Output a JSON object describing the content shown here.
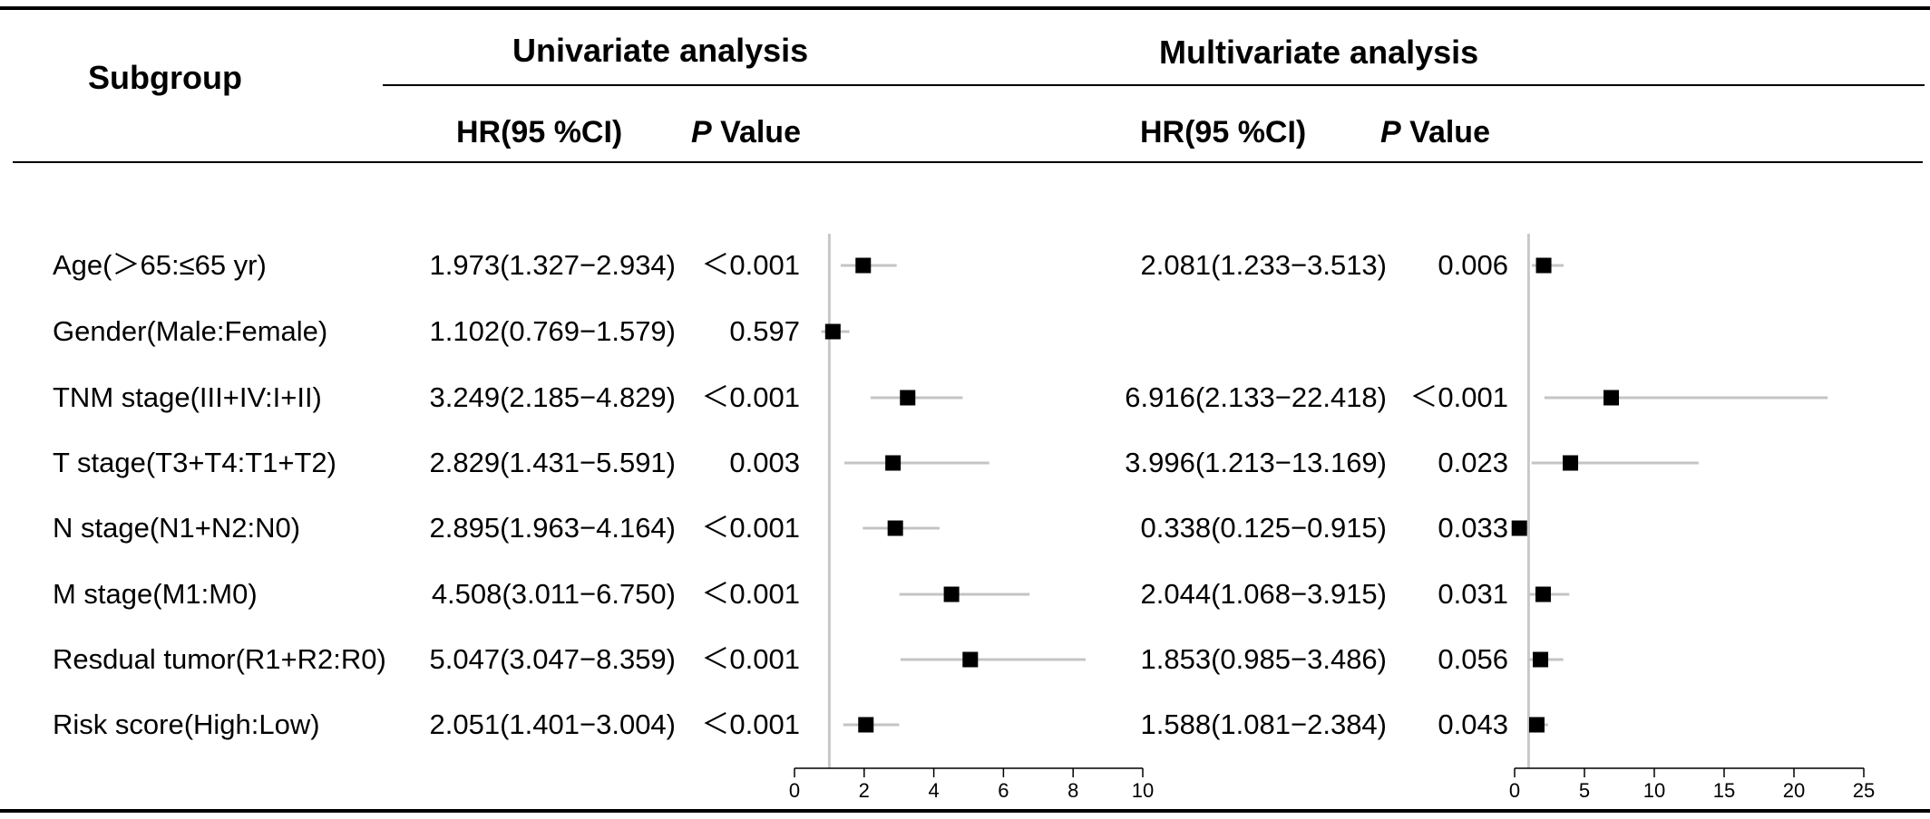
{
  "header": {
    "subgroup": "Subgroup",
    "univariate": "Univariate analysis",
    "multivariate": "Multivariate analysis",
    "hr_label": "HR(95 %CI)",
    "p_italic": "P",
    "p_value_word": "Value"
  },
  "rows": [
    {
      "label": "Age(＞65:≤65 yr)",
      "uni_hr": "1.973(1.327−2.934)",
      "uni_p": "＜0.001",
      "multi_hr": "2.081(1.233−3.513)",
      "multi_p": "0.006"
    },
    {
      "label": "Gender(Male:Female)",
      "uni_hr": "1.102(0.769−1.579)",
      "uni_p": "0.597",
      "multi_hr": "",
      "multi_p": ""
    },
    {
      "label": "TNM stage(III+IV:I+II)",
      "uni_hr": "3.249(2.185−4.829)",
      "uni_p": "＜0.001",
      "multi_hr": "6.916(2.133−22.418)",
      "multi_p": "＜0.001"
    },
    {
      "label": "T stage(T3+T4:T1+T2)",
      "uni_hr": "2.829(1.431−5.591)",
      "uni_p": "0.003",
      "multi_hr": "3.996(1.213−13.169)",
      "multi_p": "0.023"
    },
    {
      "label": "N stage(N1+N2:N0)",
      "uni_hr": "2.895(1.963−4.164)",
      "uni_p": "＜0.001",
      "multi_hr": "0.338(0.125−0.915)",
      "multi_p": "0.033"
    },
    {
      "label": "M stage(M1:M0)",
      "uni_hr": "4.508(3.011−6.750)",
      "uni_p": "＜0.001",
      "multi_hr": "2.044(1.068−3.915)",
      "multi_p": "0.031"
    },
    {
      "label": "Resdual tumor(R1+R2:R0)",
      "uni_hr": "5.047(3.047−8.359)",
      "uni_p": "＜0.001",
      "multi_hr": "1.853(0.985−3.486)",
      "multi_p": "0.056"
    },
    {
      "label": "Risk score(High:Low)",
      "uni_hr": "2.051(1.401−3.004)",
      "uni_p": "＜0.001",
      "multi_hr": "1.588(1.081−2.384)",
      "multi_p": "0.043"
    }
  ],
  "chart_data": [
    {
      "type": "forest",
      "title": "Univariate analysis",
      "xlim": [
        0,
        10
      ],
      "ticks": [
        0,
        2,
        4,
        6,
        8,
        10
      ],
      "reference_line": 1,
      "categories": [
        "Age(＞65:≤65 yr)",
        "Gender(Male:Female)",
        "TNM stage(III+IV:I+II)",
        "T stage(T3+T4:T1+T2)",
        "N stage(N1+N2:N0)",
        "M stage(M1:M0)",
        "Resdual tumor(R1+R2:R0)",
        "Risk score(High:Low)"
      ],
      "hr": [
        1.973,
        1.102,
        3.249,
        2.829,
        2.895,
        4.508,
        5.047,
        2.051
      ],
      "lower": [
        1.327,
        0.769,
        2.185,
        1.431,
        1.963,
        3.011,
        3.047,
        1.401
      ],
      "upper": [
        2.934,
        1.579,
        4.829,
        5.591,
        4.164,
        6.75,
        8.359,
        3.004
      ]
    },
    {
      "type": "forest",
      "title": "Multivariate analysis",
      "xlim": [
        0,
        25
      ],
      "ticks": [
        0,
        5,
        10,
        15,
        20,
        25
      ],
      "reference_line": 1,
      "categories": [
        "Age(＞65:≤65 yr)",
        "Gender(Male:Female)",
        "TNM stage(III+IV:I+II)",
        "T stage(T3+T4:T1+T2)",
        "N stage(N1+N2:N0)",
        "M stage(M1:M0)",
        "Resdual tumor(R1+R2:R0)",
        "Risk score(High:Low)"
      ],
      "hr": [
        2.081,
        null,
        6.916,
        3.996,
        0.338,
        2.044,
        1.853,
        1.588
      ],
      "lower": [
        1.233,
        null,
        2.133,
        1.213,
        0.125,
        1.068,
        0.985,
        1.081
      ],
      "upper": [
        3.513,
        null,
        22.418,
        13.169,
        0.915,
        3.915,
        3.486,
        2.384
      ]
    }
  ],
  "colors": {
    "ci_line": "#c4c4c4",
    "reference_line": "#c8c8c8",
    "marker": "#000000"
  }
}
